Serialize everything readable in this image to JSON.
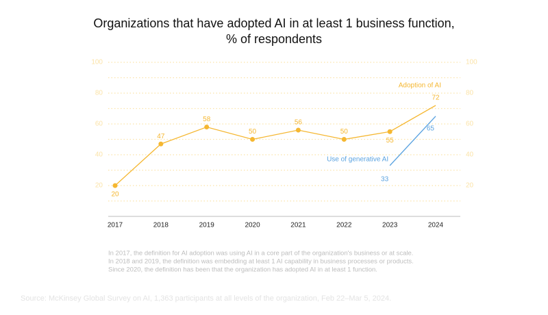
{
  "chart_data": {
    "type": "line",
    "title": [
      "Organizations that have adopted AI in at least 1 business function,",
      "% of respondents"
    ],
    "categories": [
      "2017",
      "2018",
      "2019",
      "2020",
      "2021",
      "2022",
      "2023",
      "2024"
    ],
    "series": [
      {
        "name": "Adoption of AI",
        "color": "#f5b731",
        "values": [
          20,
          47,
          58,
          50,
          56,
          50,
          55,
          72
        ]
      },
      {
        "name": "Use of generative AI",
        "color": "#5ba3e0",
        "values": [
          null,
          null,
          null,
          null,
          null,
          null,
          33,
          65
        ]
      }
    ],
    "ylim": [
      0,
      100
    ],
    "yticks": [
      20,
      40,
      60,
      80,
      100
    ],
    "minor_yticks": [
      10,
      30,
      50,
      70,
      90
    ],
    "grid": true,
    "notes": [
      "In 2017, the definition for AI adoption was using AI in a core part of the organization's business or at scale.",
      "In 2018 and 2019, the definition was embedding at least 1 AI capability in business processes or products.",
      "Since 2020, the definition has been that the organization has adopted AI in at least 1 function."
    ],
    "source": "Source: McKinsey Global Survey on AI, 1,363 participants at all levels of the organization, Feb 22–Mar 5, 2024."
  }
}
